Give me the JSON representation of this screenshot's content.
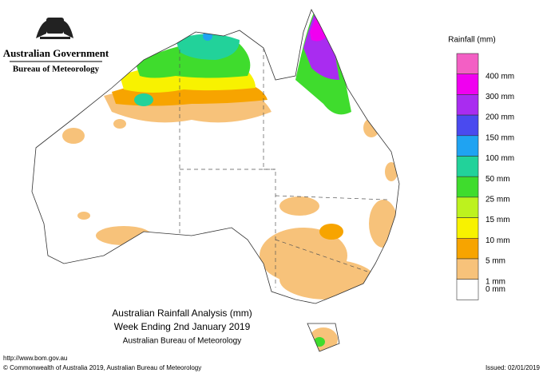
{
  "header": {
    "government": "Australian Government",
    "bureau": "Bureau of Meteorology"
  },
  "legend": {
    "title": "Rainfall (mm)",
    "items": [
      {
        "label": "400 mm",
        "color": "#f35fc4"
      },
      {
        "label": "300 mm",
        "color": "#f000f0"
      },
      {
        "label": "200 mm",
        "color": "#a92cf0"
      },
      {
        "label": "150 mm",
        "color": "#4a4aef"
      },
      {
        "label": "100 mm",
        "color": "#1fa3f2"
      },
      {
        "label": "50 mm",
        "color": "#22d29a"
      },
      {
        "label": "25 mm",
        "color": "#3fdc2d"
      },
      {
        "label": "15 mm",
        "color": "#bdf21e"
      },
      {
        "label": "10 mm",
        "color": "#f8f200"
      },
      {
        "label": "5 mm",
        "color": "#f7a400"
      },
      {
        "label": "1 mm",
        "color": "#f7c27a"
      },
      {
        "label": "0 mm",
        "color": "#ffffff"
      }
    ]
  },
  "caption": {
    "title": "Australian Rainfall Analysis (mm)",
    "period": "Week Ending 2nd January 2019",
    "source": "Australian Bureau of Meteorology"
  },
  "footer": {
    "url": "http://www.bom.gov.au",
    "copyright": "© Commonwealth of Australia 2019, Australian Bureau of Meteorology",
    "issued": "Issued: 02/01/2019"
  }
}
